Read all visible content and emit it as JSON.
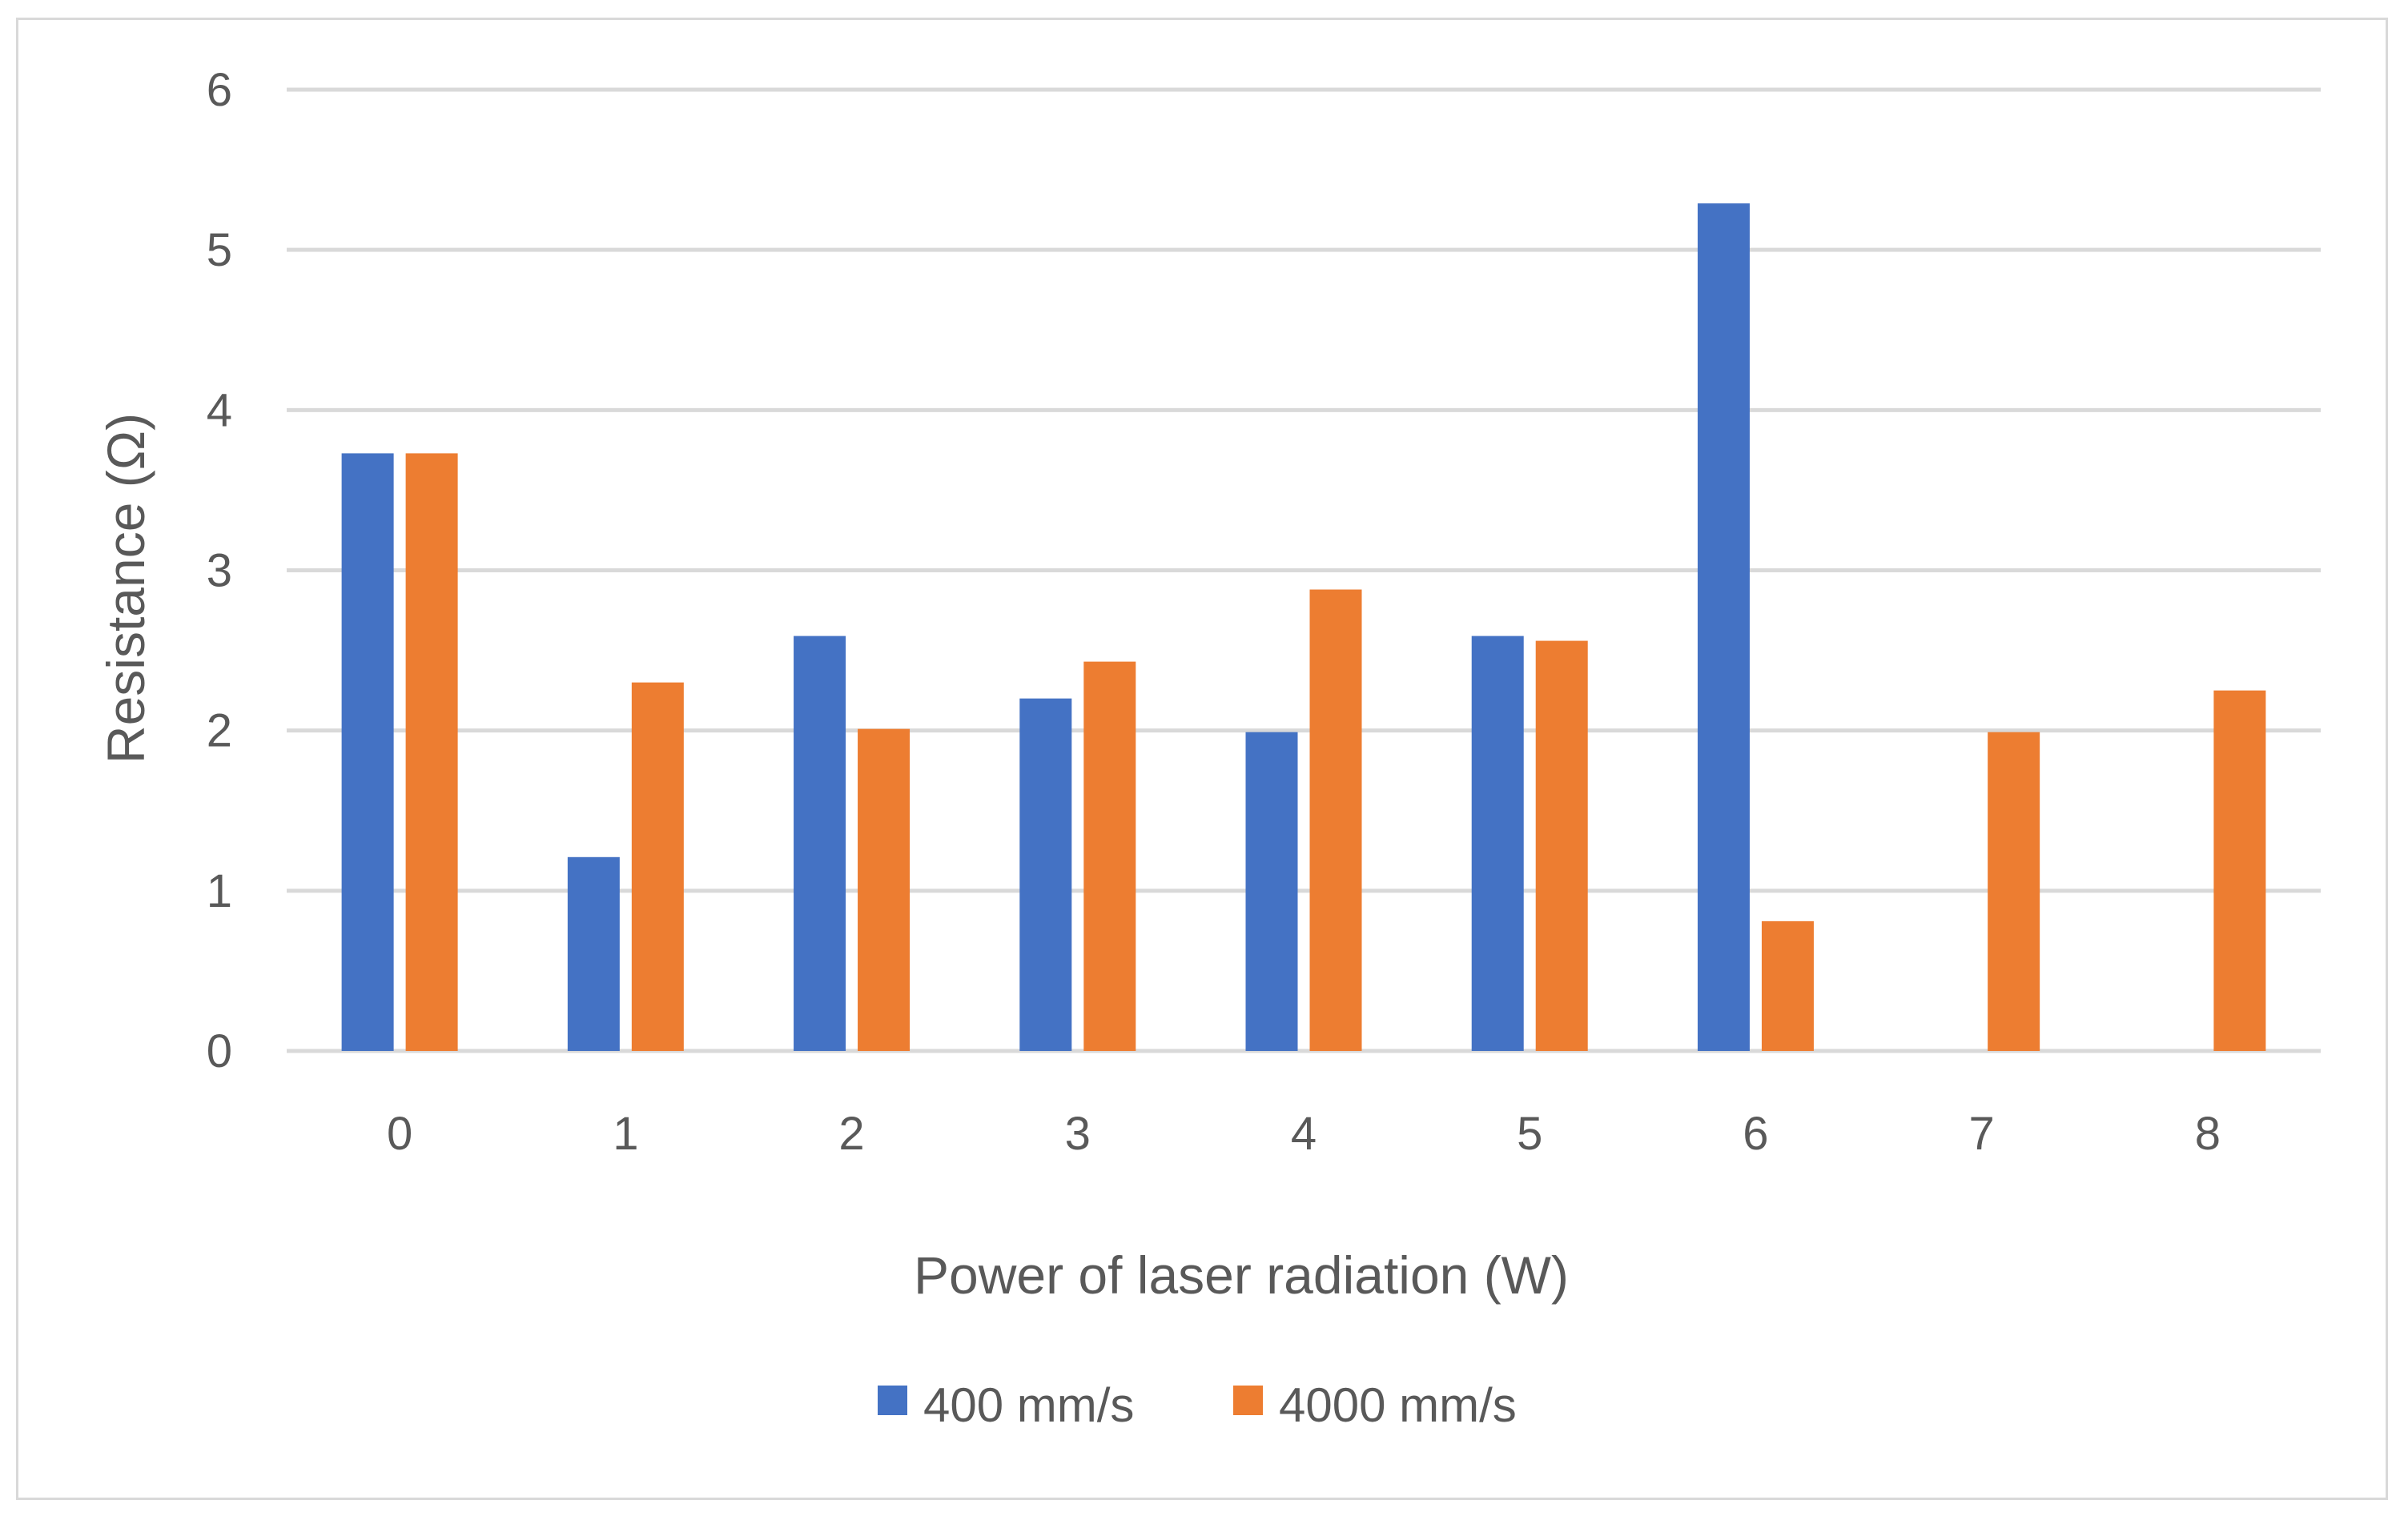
{
  "chart_data": {
    "type": "bar",
    "title": "",
    "xlabel": "Power of laser radiation (W)",
    "ylabel": "Resistance (Ω)",
    "categories": [
      "0",
      "1",
      "2",
      "3",
      "4",
      "5",
      "6",
      "7",
      "8"
    ],
    "ylim": [
      0,
      6
    ],
    "yticks": [
      "0",
      "1",
      "2",
      "3",
      "4",
      "5",
      "6"
    ],
    "grid": true,
    "legend_position": "bottom",
    "series": [
      {
        "name": "400 mm/s",
        "color": "#4472C4",
        "values": [
          3.73,
          1.21,
          2.59,
          2.2,
          1.99,
          2.59,
          5.29,
          0,
          0
        ]
      },
      {
        "name": "4000 mm/s",
        "color": "#ED7D31",
        "values": [
          3.73,
          2.3,
          2.01,
          2.43,
          2.88,
          2.56,
          0.81,
          1.99,
          2.25
        ]
      }
    ],
    "colors": {
      "grid": "#D9D9D9",
      "text": "#595959",
      "border": "#D9D9D9"
    }
  }
}
